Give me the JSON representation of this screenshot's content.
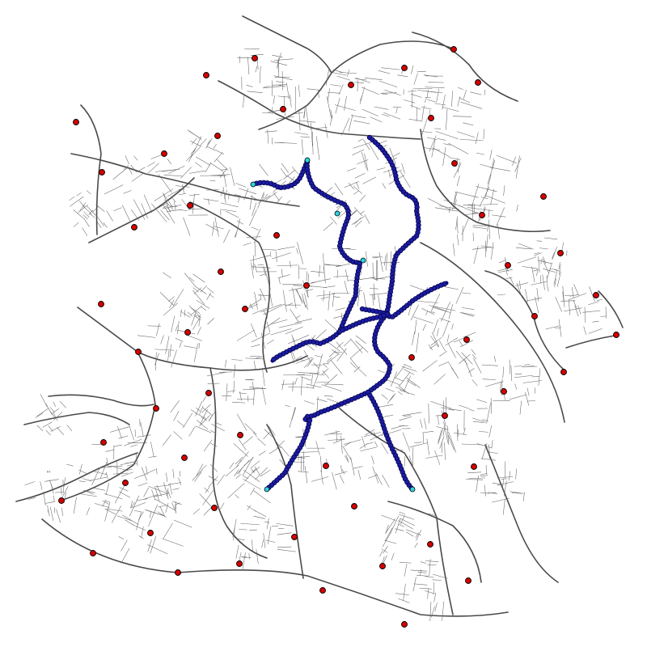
{
  "map": {
    "label": "ᴵᴵᴵ",
    "colors": {
      "background": "#ffffff",
      "street": "#555555",
      "route": "#0a0a8a",
      "poi": "#d40000",
      "endpoint": "#2ad4e0"
    },
    "marker_types": {
      "poi": "red-circle",
      "route_node": "dark-blue-circle",
      "route_endpoint": "cyan-circle"
    }
  }
}
